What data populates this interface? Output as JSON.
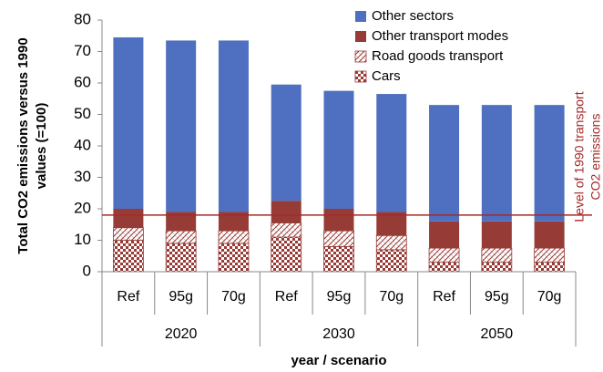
{
  "chart_data": {
    "type": "stacked_bar",
    "y_label": [
      "Total CO2 emissions versus 1990",
      "values (=100)"
    ],
    "x_label": "year / scenario",
    "categories": [
      "Ref",
      "95g",
      "70g",
      "Ref",
      "95g",
      "70g",
      "Ref",
      "95g",
      "70g"
    ],
    "groups": [
      "2020",
      "2030",
      "2050"
    ],
    "series": [
      {
        "name": "Cars",
        "color": "#963b36",
        "pattern": "check",
        "values": [
          10,
          9,
          9,
          11,
          8,
          7,
          3,
          3,
          3
        ]
      },
      {
        "name": "Road goods transport",
        "color": "#963b36",
        "pattern": "hatch",
        "values": [
          4,
          4,
          4,
          4.5,
          5,
          4.5,
          4.5,
          4.5,
          4.5
        ]
      },
      {
        "name": "Other transport modes",
        "color": "#963b36",
        "pattern": "solid",
        "values": [
          6,
          6,
          6,
          7,
          7,
          7.5,
          8.5,
          8.5,
          8.5
        ]
      },
      {
        "name": "Other sectors",
        "color": "#4f6fc0",
        "pattern": "solid",
        "values": [
          54.5,
          54.5,
          54.5,
          37,
          37.5,
          37.5,
          37,
          37,
          37
        ]
      }
    ],
    "reference_line": {
      "value": 18,
      "color": "#a52a2a",
      "label": [
        "Level of 1990 transport",
        "CO2 emissions"
      ]
    },
    "ylim": [
      0,
      80
    ],
    "yticks": [
      0,
      10,
      20,
      30,
      40,
      50,
      60,
      70,
      80
    ]
  }
}
